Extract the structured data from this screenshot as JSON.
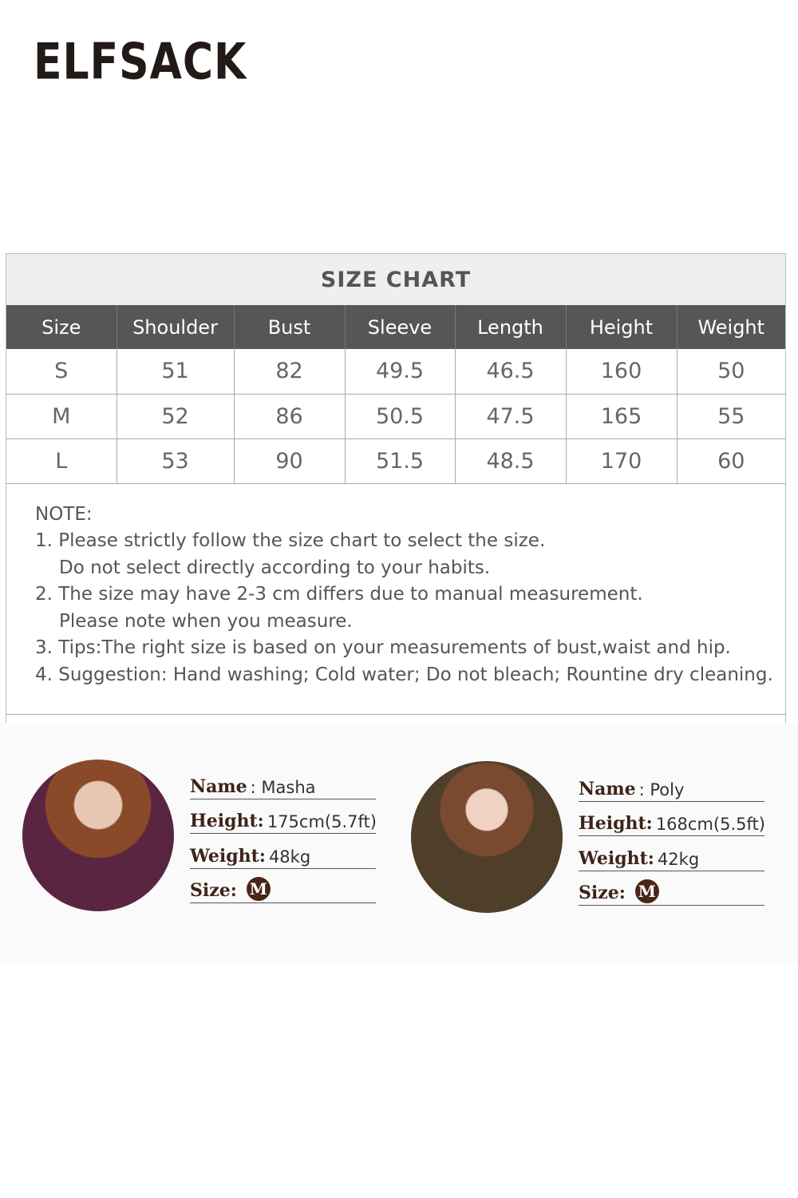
{
  "brand": {
    "logo": "ELFSACK"
  },
  "size_chart": {
    "title": "SIZE CHART",
    "headers": [
      "Size",
      "Shoulder",
      "Bust",
      "Sleeve",
      "Length",
      "Height",
      "Weight"
    ],
    "rows": [
      [
        "S",
        "51",
        "82",
        "49.5",
        "46.5",
        "160",
        "50"
      ],
      [
        "M",
        "52",
        "86",
        "50.5",
        "47.5",
        "165",
        "55"
      ],
      [
        "L",
        "53",
        "90",
        "51.5",
        "48.5",
        "170",
        "60"
      ]
    ],
    "note_title": "NOTE:",
    "notes": [
      "1. Please strictly follow the size chart to select the size.",
      "Do not select directly according to your habits.",
      "2. The size may have 2-3 cm differs due to manual measurement.",
      "Please note when you measure.",
      "3. Tips:The right size is based on your measurements of bust,waist and hip.",
      "4. Suggestion: Hand washing; Cold water; Do not bleach; Rountine dry cleaning."
    ]
  },
  "models": [
    {
      "name_label": "Name",
      "name": ": Masha",
      "height_label": "Height:",
      "height": "175cm(5.7ft)",
      "weight_label": "Weight:",
      "weight": "48kg",
      "size_label": "Size:",
      "size": "M"
    },
    {
      "name_label": "Name",
      "name": ": Poly",
      "height_label": "Height:",
      "height": "168cm(5.5ft)",
      "weight_label": "Weight:",
      "weight": "42kg",
      "size_label": "Size:",
      "size": "M"
    }
  ]
}
